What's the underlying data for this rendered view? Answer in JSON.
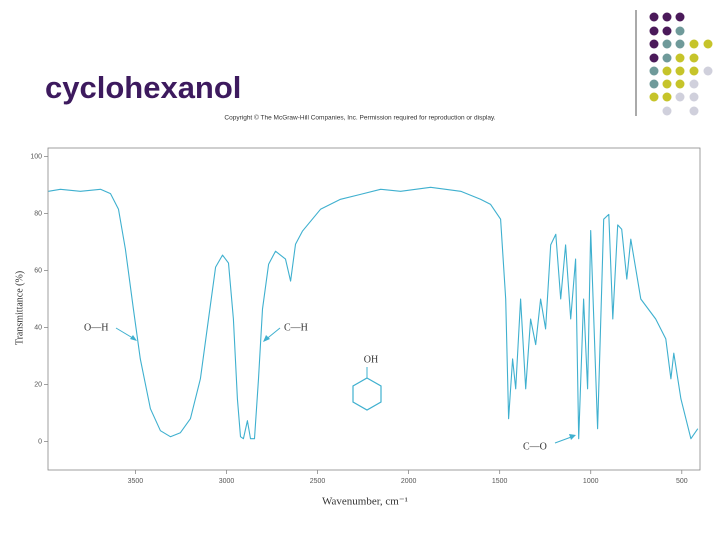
{
  "chart_data": {
    "type": "line",
    "title": "cyclohexanol",
    "subtitle": "Copyright © The McGraw-Hill Companies, Inc. Permission required for reproduction or display.",
    "x_label": "Wavenumber, cm⁻¹",
    "y_label": "Transmittance (%)",
    "annotations": [
      "O—H",
      "C—H",
      "C—O",
      "OH"
    ],
    "x": [
      3978,
      3912,
      3802,
      3692,
      3637,
      3593,
      3555,
      3511,
      3473,
      3418,
      3363,
      3308,
      3253,
      3198,
      3143,
      3099,
      3060,
      3022,
      2989,
      2962,
      2940,
      2923,
      2907,
      2885,
      2868,
      2846,
      2824,
      2802,
      2769,
      2731,
      2676,
      2648,
      2621,
      2583,
      2484,
      2374,
      2264,
      2154,
      2044,
      1879,
      1714,
      1605,
      1550,
      1495,
      1467,
      1451,
      1429,
      1412,
      1385,
      1357,
      1330,
      1302,
      1275,
      1248,
      1220,
      1192,
      1165,
      1138,
      1110,
      1083,
      1066,
      1039,
      1017,
      1000,
      962,
      929,
      901,
      879,
      852,
      830,
      802,
      780,
      725,
      643,
      588,
      560,
      544,
      505,
      450,
      412
    ],
    "series": [
      {
        "name": "cyclohexanol",
        "color": "#3fb0cf",
        "values": [
          87.8,
          88.5,
          87.8,
          88.5,
          87,
          81.5,
          67.5,
          46.5,
          29,
          11.5,
          3.8,
          1.7,
          3.1,
          8,
          22,
          43,
          61.2,
          65.4,
          62.6,
          43,
          15,
          1.7,
          1,
          7.3,
          1,
          1,
          22,
          46.5,
          62.2,
          66.8,
          64,
          56.3,
          69.2,
          73.8,
          81.5,
          85,
          86.7,
          88.5,
          87.8,
          89.2,
          87.8,
          85,
          83.2,
          78,
          50,
          8,
          29,
          18.5,
          50,
          18.5,
          43,
          34,
          50,
          39.5,
          69,
          72.7,
          50,
          69,
          43,
          64,
          1,
          50,
          18.5,
          74,
          4.5,
          78,
          79.7,
          43,
          76,
          74.5,
          57,
          71,
          50,
          43,
          36,
          22,
          31,
          15,
          1,
          4.5
        ]
      }
    ],
    "xlim": [
      3980,
      400
    ],
    "ylim": [
      -10,
      103
    ],
    "xticks": [
      3500,
      3000,
      2500,
      2000,
      1500,
      1000,
      500
    ],
    "yticks": [
      0,
      20,
      40,
      60,
      80,
      100
    ],
    "grid": false
  }
}
